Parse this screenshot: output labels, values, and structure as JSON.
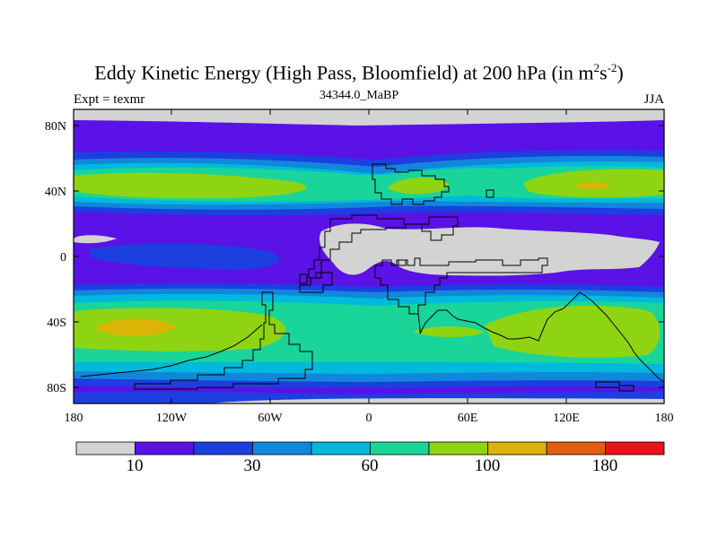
{
  "title": {
    "main": "Eddy Kinetic Energy (High Pass, Bloomfield) at 200 hPa (in m",
    "sup1": "2",
    "mid": "s",
    "sup2": "-2",
    "end": ")"
  },
  "subtitle_left": "Expt = texmr",
  "subtitle_center": "34344.0_MaBP",
  "subtitle_right": "JJA",
  "map": {
    "y_ticks": [
      "80N",
      "40N",
      "0",
      "40S",
      "80S"
    ],
    "x_ticks": [
      "180",
      "120W",
      "60W",
      "0",
      "60E",
      "120E",
      "180"
    ]
  },
  "colorbar": {
    "colors": [
      "#d3d3d3",
      "#5a12e6",
      "#1d3fe0",
      "#1187db",
      "#00b9dc",
      "#19d59a",
      "#8fd412",
      "#dbb405",
      "#e25e12",
      "#e8141a"
    ],
    "labels": [
      "10",
      "30",
      "60",
      "100",
      "180"
    ]
  },
  "palette": {
    "gray": "#d3d3d3",
    "purple": "#5a12e6",
    "blue": "#1d3fe0",
    "mid_blue": "#1187db",
    "cyan": "#00b9dc",
    "teal": "#19d59a",
    "green": "#8fd412",
    "orange": "#dbb405"
  }
}
